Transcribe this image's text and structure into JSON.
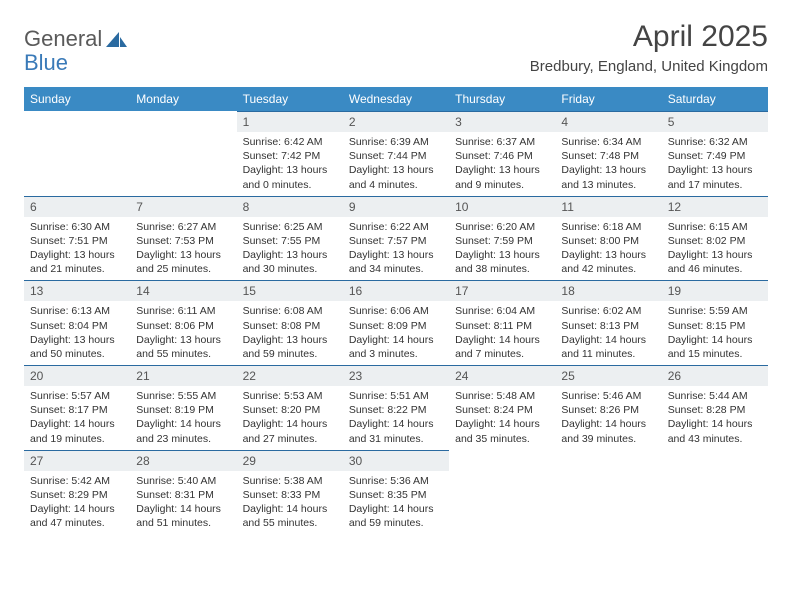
{
  "logo": {
    "textGeneral": "General",
    "textBlue": "Blue",
    "iconColor": "#2a6aa0"
  },
  "title": "April 2025",
  "location": "Bredbury, England, United Kingdom",
  "colors": {
    "headerBg": "#3a8ac4",
    "headerText": "#ffffff",
    "dayNumBg": "#eceff1",
    "borderTop": "#2a6aa0",
    "bodyText": "#333333"
  },
  "dayHeaders": [
    "Sunday",
    "Monday",
    "Tuesday",
    "Wednesday",
    "Thursday",
    "Friday",
    "Saturday"
  ],
  "weeks": [
    [
      null,
      null,
      {
        "d": "1",
        "sr": "6:42 AM",
        "ss": "7:42 PM",
        "dl": "13 hours and 0 minutes."
      },
      {
        "d": "2",
        "sr": "6:39 AM",
        "ss": "7:44 PM",
        "dl": "13 hours and 4 minutes."
      },
      {
        "d": "3",
        "sr": "6:37 AM",
        "ss": "7:46 PM",
        "dl": "13 hours and 9 minutes."
      },
      {
        "d": "4",
        "sr": "6:34 AM",
        "ss": "7:48 PM",
        "dl": "13 hours and 13 minutes."
      },
      {
        "d": "5",
        "sr": "6:32 AM",
        "ss": "7:49 PM",
        "dl": "13 hours and 17 minutes."
      }
    ],
    [
      {
        "d": "6",
        "sr": "6:30 AM",
        "ss": "7:51 PM",
        "dl": "13 hours and 21 minutes."
      },
      {
        "d": "7",
        "sr": "6:27 AM",
        "ss": "7:53 PM",
        "dl": "13 hours and 25 minutes."
      },
      {
        "d": "8",
        "sr": "6:25 AM",
        "ss": "7:55 PM",
        "dl": "13 hours and 30 minutes."
      },
      {
        "d": "9",
        "sr": "6:22 AM",
        "ss": "7:57 PM",
        "dl": "13 hours and 34 minutes."
      },
      {
        "d": "10",
        "sr": "6:20 AM",
        "ss": "7:59 PM",
        "dl": "13 hours and 38 minutes."
      },
      {
        "d": "11",
        "sr": "6:18 AM",
        "ss": "8:00 PM",
        "dl": "13 hours and 42 minutes."
      },
      {
        "d": "12",
        "sr": "6:15 AM",
        "ss": "8:02 PM",
        "dl": "13 hours and 46 minutes."
      }
    ],
    [
      {
        "d": "13",
        "sr": "6:13 AM",
        "ss": "8:04 PM",
        "dl": "13 hours and 50 minutes."
      },
      {
        "d": "14",
        "sr": "6:11 AM",
        "ss": "8:06 PM",
        "dl": "13 hours and 55 minutes."
      },
      {
        "d": "15",
        "sr": "6:08 AM",
        "ss": "8:08 PM",
        "dl": "13 hours and 59 minutes."
      },
      {
        "d": "16",
        "sr": "6:06 AM",
        "ss": "8:09 PM",
        "dl": "14 hours and 3 minutes."
      },
      {
        "d": "17",
        "sr": "6:04 AM",
        "ss": "8:11 PM",
        "dl": "14 hours and 7 minutes."
      },
      {
        "d": "18",
        "sr": "6:02 AM",
        "ss": "8:13 PM",
        "dl": "14 hours and 11 minutes."
      },
      {
        "d": "19",
        "sr": "5:59 AM",
        "ss": "8:15 PM",
        "dl": "14 hours and 15 minutes."
      }
    ],
    [
      {
        "d": "20",
        "sr": "5:57 AM",
        "ss": "8:17 PM",
        "dl": "14 hours and 19 minutes."
      },
      {
        "d": "21",
        "sr": "5:55 AM",
        "ss": "8:19 PM",
        "dl": "14 hours and 23 minutes."
      },
      {
        "d": "22",
        "sr": "5:53 AM",
        "ss": "8:20 PM",
        "dl": "14 hours and 27 minutes."
      },
      {
        "d": "23",
        "sr": "5:51 AM",
        "ss": "8:22 PM",
        "dl": "14 hours and 31 minutes."
      },
      {
        "d": "24",
        "sr": "5:48 AM",
        "ss": "8:24 PM",
        "dl": "14 hours and 35 minutes."
      },
      {
        "d": "25",
        "sr": "5:46 AM",
        "ss": "8:26 PM",
        "dl": "14 hours and 39 minutes."
      },
      {
        "d": "26",
        "sr": "5:44 AM",
        "ss": "8:28 PM",
        "dl": "14 hours and 43 minutes."
      }
    ],
    [
      {
        "d": "27",
        "sr": "5:42 AM",
        "ss": "8:29 PM",
        "dl": "14 hours and 47 minutes."
      },
      {
        "d": "28",
        "sr": "5:40 AM",
        "ss": "8:31 PM",
        "dl": "14 hours and 51 minutes."
      },
      {
        "d": "29",
        "sr": "5:38 AM",
        "ss": "8:33 PM",
        "dl": "14 hours and 55 minutes."
      },
      {
        "d": "30",
        "sr": "5:36 AM",
        "ss": "8:35 PM",
        "dl": "14 hours and 59 minutes."
      },
      null,
      null,
      null
    ]
  ],
  "labels": {
    "sunrise": "Sunrise:",
    "sunset": "Sunset:",
    "daylight": "Daylight:"
  }
}
